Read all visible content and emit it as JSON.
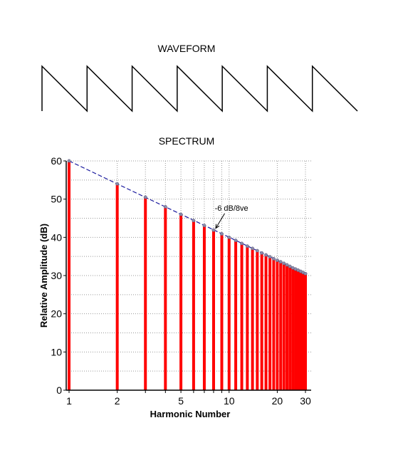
{
  "waveform": {
    "title": "WAVEFORM",
    "shape": "sawtooth",
    "cycles": 7
  },
  "chart_data": {
    "type": "bar",
    "title": "SPECTRUM",
    "xlabel": "Harmonic Number",
    "ylabel": "Relative Amplitude (dB)",
    "x_scale": "log",
    "xlim": [
      1,
      30
    ],
    "ylim": [
      0,
      60
    ],
    "x_ticks": [
      1,
      2,
      5,
      10,
      20,
      30
    ],
    "x_grid": [
      1,
      2,
      3,
      4,
      5,
      6,
      7,
      8,
      9,
      10,
      20,
      30
    ],
    "y_ticks": [
      0,
      10,
      20,
      30,
      40,
      50,
      60
    ],
    "y_minor_grid": [
      5,
      15,
      25,
      35,
      45,
      55
    ],
    "grid": true,
    "harmonics": [
      1,
      2,
      3,
      4,
      5,
      6,
      7,
      8,
      9,
      10,
      11,
      12,
      13,
      14,
      15,
      16,
      17,
      18,
      19,
      20,
      21,
      22,
      23,
      24,
      25,
      26,
      27,
      28,
      29,
      30
    ],
    "values": [
      60.0,
      54.0,
      50.5,
      48.0,
      46.0,
      44.4,
      43.1,
      41.9,
      40.9,
      40.0,
      39.2,
      38.4,
      37.7,
      37.1,
      36.5,
      35.9,
      35.4,
      34.9,
      34.4,
      34.0,
      33.6,
      33.2,
      32.8,
      32.4,
      32.0,
      31.7,
      31.4,
      31.1,
      30.8,
      30.5
    ],
    "trend_line": {
      "from": [
        1,
        60.0
      ],
      "to": [
        30,
        30.5
      ]
    },
    "annotation": {
      "text": "-6 dB/8ve",
      "x": 8.3,
      "y": 47,
      "points_to": [
        8,
        42.0
      ]
    },
    "colors": {
      "bars": "#ff0000",
      "trend": "#1a1a9e",
      "points": "#8a8aa8",
      "grid": "#999999"
    }
  }
}
